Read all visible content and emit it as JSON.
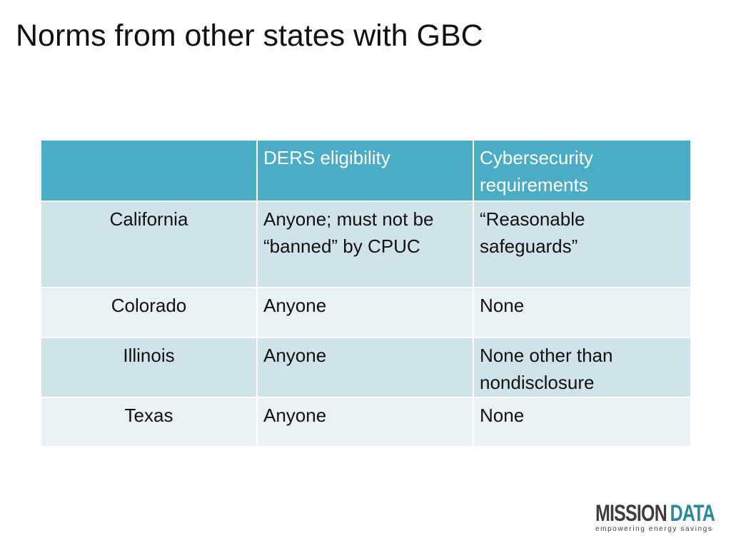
{
  "title": "Norms from other states with GBC",
  "table": {
    "header": [
      "DERS eligibility",
      "Cybersecurity requirements"
    ],
    "rows": [
      [
        "California",
        "Anyone; must not be “banned” by CPUC",
        "“Reasonable safeguards”"
      ],
      [
        "Colorado",
        "Anyone",
        "None"
      ],
      [
        "Illinois",
        "Anyone",
        "None other than nondisclosure"
      ],
      [
        "Texas",
        "Anyone",
        "None"
      ]
    ]
  },
  "logo": {
    "word1": "MISSION",
    "word2": "DATA",
    "tagline": "empowering energy savings"
  }
}
